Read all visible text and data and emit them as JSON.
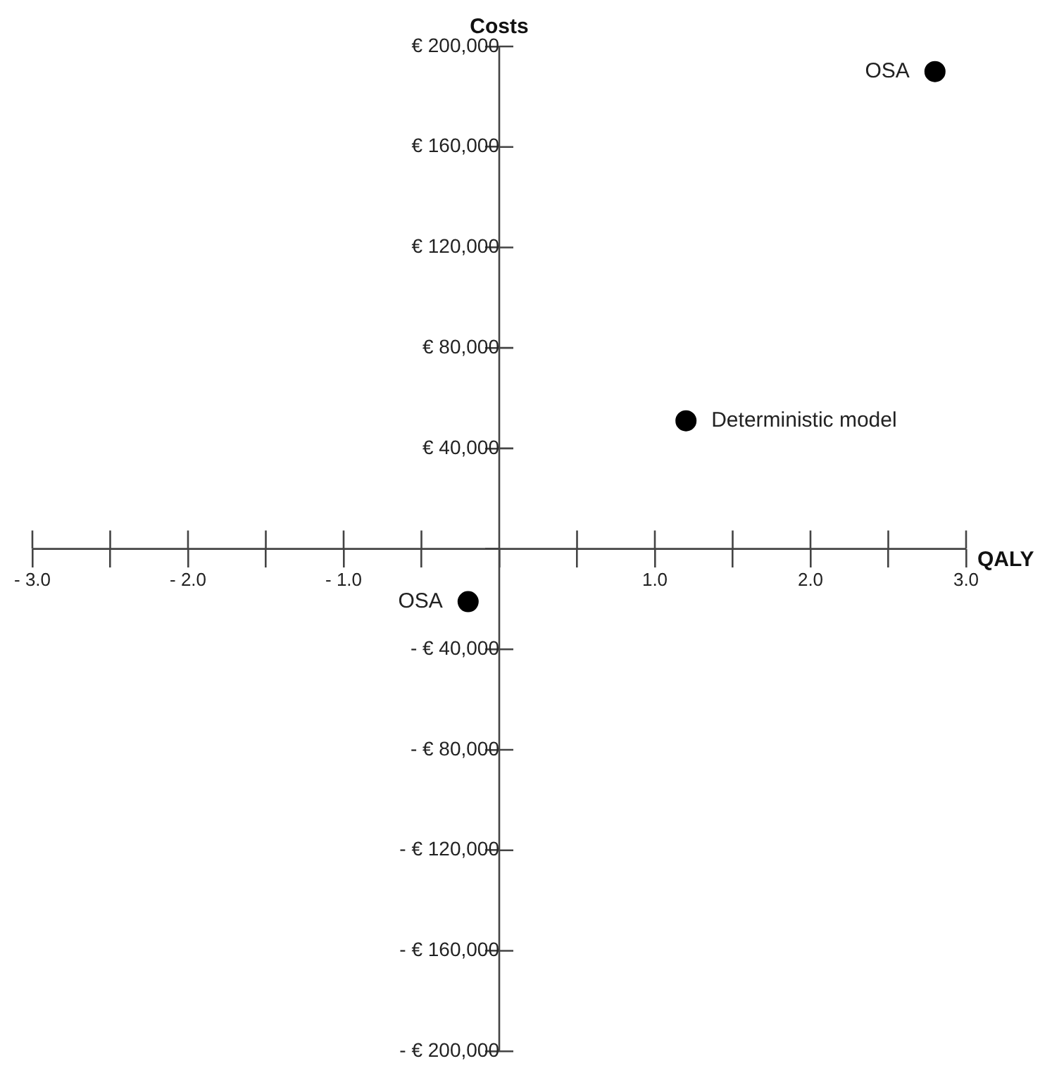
{
  "chart_data": {
    "type": "scatter",
    "xlabel": "QALY",
    "ylabel": "Costs",
    "x": [
      2.8,
      1.2,
      -0.2
    ],
    "series": [
      {
        "color": "#000000",
        "values": [
          190000,
          51000,
          -21000
        ]
      }
    ],
    "xlim": [
      -3.0,
      3.0
    ],
    "xticks": [
      {
        "value": -3,
        "label": "- 3.0"
      },
      {
        "value": -2.5,
        "label": null
      },
      {
        "value": -2,
        "label": "- 2.0"
      },
      {
        "value": -1.5,
        "label": null
      },
      {
        "value": -1,
        "label": "- 1.0"
      },
      {
        "value": -0.5,
        "label": null
      },
      {
        "value": 0,
        "label": null
      },
      {
        "value": 0.5,
        "label": null
      },
      {
        "value": 1,
        "label": "1.0"
      },
      {
        "value": 1.5,
        "label": null
      },
      {
        "value": 2,
        "label": "2.0"
      },
      {
        "value": 2.5,
        "label": null
      },
      {
        "value": 3,
        "label": "3.0"
      }
    ],
    "ylim": [
      -200000,
      200000
    ],
    "yticks": [
      {
        "value": -200000,
        "label": "- € 200,000"
      },
      {
        "value": -160000,
        "label": "- € 160,000"
      },
      {
        "value": -120000,
        "label": "- € 120,000"
      },
      {
        "value": -80000,
        "label": "- € 80,000"
      },
      {
        "value": -40000,
        "label": "- € 40,000"
      },
      {
        "value": 0,
        "label": null
      },
      {
        "value": 40000,
        "label": "€ 40,000"
      },
      {
        "value": 80000,
        "label": "€ 80,000"
      },
      {
        "value": 120000,
        "label": "€ 120,000"
      },
      {
        "value": 160000,
        "label": "€ 160,000"
      },
      {
        "value": 200000,
        "label": "€ 200,000"
      }
    ],
    "annotations": [
      {
        "text": "OSA",
        "x": 2.8,
        "y": 190000
      },
      {
        "text": "Deterministic model",
        "x": 1.2,
        "y": 51000
      },
      {
        "text": "OSA",
        "x": -0.2,
        "y": -21000
      }
    ],
    "marker": "circle",
    "grid": false,
    "legend": false
  }
}
